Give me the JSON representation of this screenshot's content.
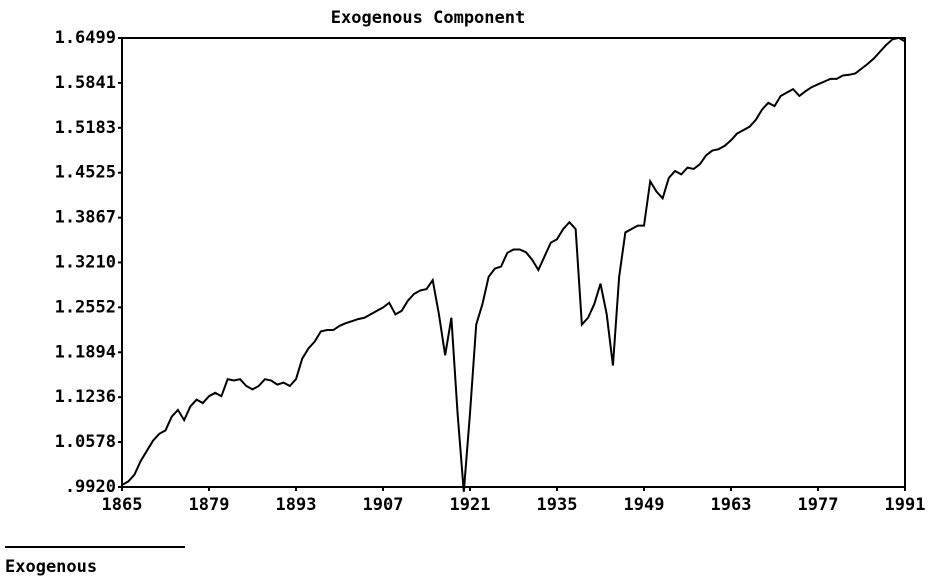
{
  "chart_data": {
    "type": "line",
    "title": "Exogenous Component",
    "x": [
      1865,
      1866,
      1867,
      1868,
      1869,
      1870,
      1871,
      1872,
      1873,
      1874,
      1875,
      1876,
      1877,
      1878,
      1879,
      1880,
      1881,
      1882,
      1883,
      1884,
      1885,
      1886,
      1887,
      1888,
      1889,
      1890,
      1891,
      1892,
      1893,
      1894,
      1895,
      1896,
      1897,
      1898,
      1899,
      1900,
      1901,
      1902,
      1903,
      1904,
      1905,
      1906,
      1907,
      1908,
      1909,
      1910,
      1911,
      1912,
      1913,
      1914,
      1915,
      1916,
      1917,
      1918,
      1919,
      1920,
      1921,
      1922,
      1923,
      1924,
      1925,
      1926,
      1927,
      1928,
      1929,
      1930,
      1931,
      1932,
      1933,
      1934,
      1935,
      1936,
      1937,
      1938,
      1939,
      1940,
      1941,
      1942,
      1943,
      1944,
      1945,
      1946,
      1947,
      1948,
      1949,
      1950,
      1951,
      1952,
      1953,
      1954,
      1955,
      1956,
      1957,
      1958,
      1959,
      1960,
      1961,
      1962,
      1963,
      1964,
      1965,
      1966,
      1967,
      1968,
      1969,
      1970,
      1971,
      1972,
      1973,
      1974,
      1975,
      1976,
      1977,
      1978,
      1979,
      1980,
      1981,
      1982,
      1983,
      1984,
      1985,
      1986,
      1987,
      1988,
      1989,
      1990,
      1991
    ],
    "series": [
      {
        "name": "Exogenous",
        "color": "#000000",
        "values": [
          0.995,
          1.0,
          1.01,
          1.03,
          1.045,
          1.06,
          1.07,
          1.075,
          1.095,
          1.105,
          1.09,
          1.11,
          1.12,
          1.115,
          1.125,
          1.13,
          1.125,
          1.15,
          1.148,
          1.15,
          1.14,
          1.135,
          1.14,
          1.15,
          1.148,
          1.142,
          1.145,
          1.14,
          1.15,
          1.18,
          1.195,
          1.205,
          1.22,
          1.222,
          1.222,
          1.228,
          1.232,
          1.235,
          1.238,
          1.24,
          1.245,
          1.25,
          1.255,
          1.262,
          1.245,
          1.25,
          1.265,
          1.275,
          1.28,
          1.282,
          1.295,
          1.245,
          1.185,
          1.24,
          1.1,
          0.985,
          1.1,
          1.23,
          1.26,
          1.3,
          1.312,
          1.315,
          1.335,
          1.34,
          1.34,
          1.336,
          1.325,
          1.31,
          1.33,
          1.35,
          1.355,
          1.37,
          1.38,
          1.37,
          1.23,
          1.24,
          1.26,
          1.29,
          1.245,
          1.17,
          1.3,
          1.365,
          1.37,
          1.375,
          1.375,
          1.44,
          1.425,
          1.415,
          1.445,
          1.455,
          1.45,
          1.46,
          1.458,
          1.465,
          1.478,
          1.485,
          1.487,
          1.492,
          1.5,
          1.51,
          1.515,
          1.52,
          1.53,
          1.545,
          1.555,
          1.55,
          1.565,
          1.57,
          1.575,
          1.565,
          1.572,
          1.578,
          1.582,
          1.586,
          1.59,
          1.59,
          1.595,
          1.596,
          1.598,
          1.605,
          1.612,
          1.62,
          1.63,
          1.64,
          1.648,
          1.65,
          1.645
        ]
      }
    ],
    "xlim": [
      1865,
      1991
    ],
    "xticks": [
      1865,
      1879,
      1893,
      1907,
      1921,
      1935,
      1949,
      1963,
      1977,
      1991
    ],
    "ylim": [
      0.992,
      1.6499
    ],
    "yticks": [
      {
        "value": 0.992,
        "label": ".9920"
      },
      1.0578,
      1.1236,
      1.1894,
      1.2552,
      {
        "value": 1.321,
        "label": "1.3210"
      },
      1.3867,
      1.4525,
      1.5183,
      1.5841,
      1.6499
    ]
  }
}
